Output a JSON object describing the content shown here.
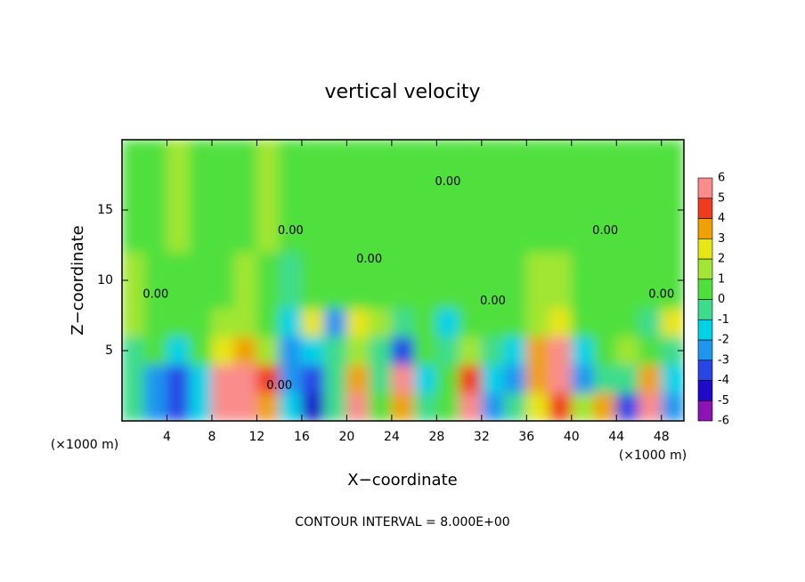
{
  "chart_data": {
    "type": "heatmap",
    "title": "vertical velocity",
    "x_label": "X−coordinate",
    "y_label": "Z−coordinate",
    "x_unit_left": "(×1000 m)",
    "x_unit_right": "(×1000 m)",
    "footer": "CONTOUR INTERVAL = 8.000E+00",
    "xlim": [
      0,
      50
    ],
    "ylim": [
      0,
      20
    ],
    "xticks": [
      4,
      8,
      12,
      16,
      20,
      24,
      28,
      32,
      36,
      40,
      44,
      48
    ],
    "yticks": [
      5,
      10,
      15
    ],
    "x_edges": [
      0,
      2,
      4,
      6,
      8,
      10,
      12,
      14,
      16,
      18,
      20,
      22,
      24,
      26,
      28,
      30,
      32,
      34,
      36,
      38,
      40,
      42,
      44,
      46,
      48,
      50
    ],
    "y_edges": [
      0,
      2,
      4,
      6,
      8,
      12,
      20
    ],
    "z": [
      [
        -1,
        -3,
        -4,
        -2,
        5,
        6,
        3,
        -2,
        -5,
        -1,
        5,
        0,
        3,
        -1,
        0,
        5,
        -3,
        -1,
        2,
        4,
        1,
        3,
        -4,
        5,
        -3
      ],
      [
        -1,
        -3,
        -4,
        -2,
        5,
        6,
        4,
        -3,
        -4,
        -1,
        3,
        -1,
        5,
        -2,
        0,
        4,
        -2,
        -3,
        3,
        6,
        -3,
        -1,
        -1,
        3,
        -2
      ],
      [
        -1,
        0,
        -2,
        0,
        2,
        3,
        1,
        -3,
        -2,
        -1,
        1,
        -1,
        -4,
        0,
        -1,
        1,
        -1,
        -2,
        3,
        5,
        -2,
        0,
        1,
        0,
        -1
      ],
      [
        1,
        0,
        0,
        0,
        1,
        1,
        0,
        -2,
        2,
        -3,
        2,
        1,
        -1,
        0,
        -2,
        0,
        0,
        0,
        1,
        2,
        0,
        0,
        0,
        -1,
        2
      ],
      [
        1,
        0,
        0,
        0,
        0,
        1,
        0,
        -1,
        0,
        0,
        0,
        0,
        0,
        0,
        0,
        0,
        0,
        0,
        1,
        1,
        0,
        0,
        0,
        0,
        0
      ],
      [
        0,
        0,
        1,
        0,
        0,
        0,
        1,
        0,
        0,
        0,
        0,
        0,
        0,
        0,
        0,
        0,
        0,
        0,
        0,
        0,
        0,
        0,
        0,
        0,
        0
      ]
    ],
    "colorbar": {
      "levels": [
        -6,
        -5,
        -4,
        -3,
        -2,
        -1,
        0,
        1,
        2,
        3,
        4,
        5,
        6
      ],
      "colors": [
        "#8c14b4",
        "#1e0ac8",
        "#2846e6",
        "#1e96f0",
        "#00d2e6",
        "#3cdc8c",
        "#50e03c",
        "#a0e632",
        "#e6e614",
        "#f0a000",
        "#f03c1e",
        "#fa8c8c"
      ]
    },
    "contour_labels": [
      {
        "x": 3,
        "y": 9,
        "label": "0.00"
      },
      {
        "x": 15,
        "y": 13.5,
        "label": "0.00"
      },
      {
        "x": 22,
        "y": 11.5,
        "label": "0.00"
      },
      {
        "x": 33,
        "y": 8.5,
        "label": "0.00"
      },
      {
        "x": 43,
        "y": 13.5,
        "label": "0.00"
      },
      {
        "x": 48,
        "y": 9,
        "label": "0.00"
      },
      {
        "x": 29,
        "y": 17,
        "label": "0.00"
      },
      {
        "x": 14,
        "y": 2.5,
        "label": "0.00"
      }
    ]
  }
}
